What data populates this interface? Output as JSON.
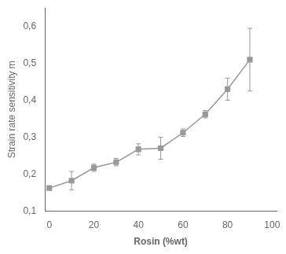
{
  "chart_data": {
    "type": "line",
    "xlabel": "Rosin (%wt)",
    "ylabel": "Strain rate sensitivity m",
    "x": [
      0,
      10,
      20,
      30,
      40,
      50,
      60,
      70,
      80,
      90
    ],
    "values": [
      0.162,
      0.182,
      0.217,
      0.232,
      0.267,
      0.27,
      0.312,
      0.362,
      0.43,
      0.51
    ],
    "yerr": [
      0.005,
      0.025,
      0.01,
      0.01,
      0.015,
      0.03,
      0.01,
      0.01,
      0.03,
      0.085
    ],
    "color": "#999999",
    "marker": "square",
    "xlim": [
      -2,
      102
    ],
    "ylim": [
      0.1,
      0.65
    ],
    "xticks": [
      0,
      20,
      40,
      60,
      80,
      100
    ],
    "yticks": [
      {
        "value": 0.1,
        "label": "0,1"
      },
      {
        "value": 0.2,
        "label": "0,2"
      },
      {
        "value": 0.3,
        "label": "0,3"
      },
      {
        "value": 0.4,
        "label": "0,4"
      },
      {
        "value": 0.5,
        "label": "0,5"
      },
      {
        "value": 0.6,
        "label": "0,6"
      }
    ],
    "grid": false
  }
}
